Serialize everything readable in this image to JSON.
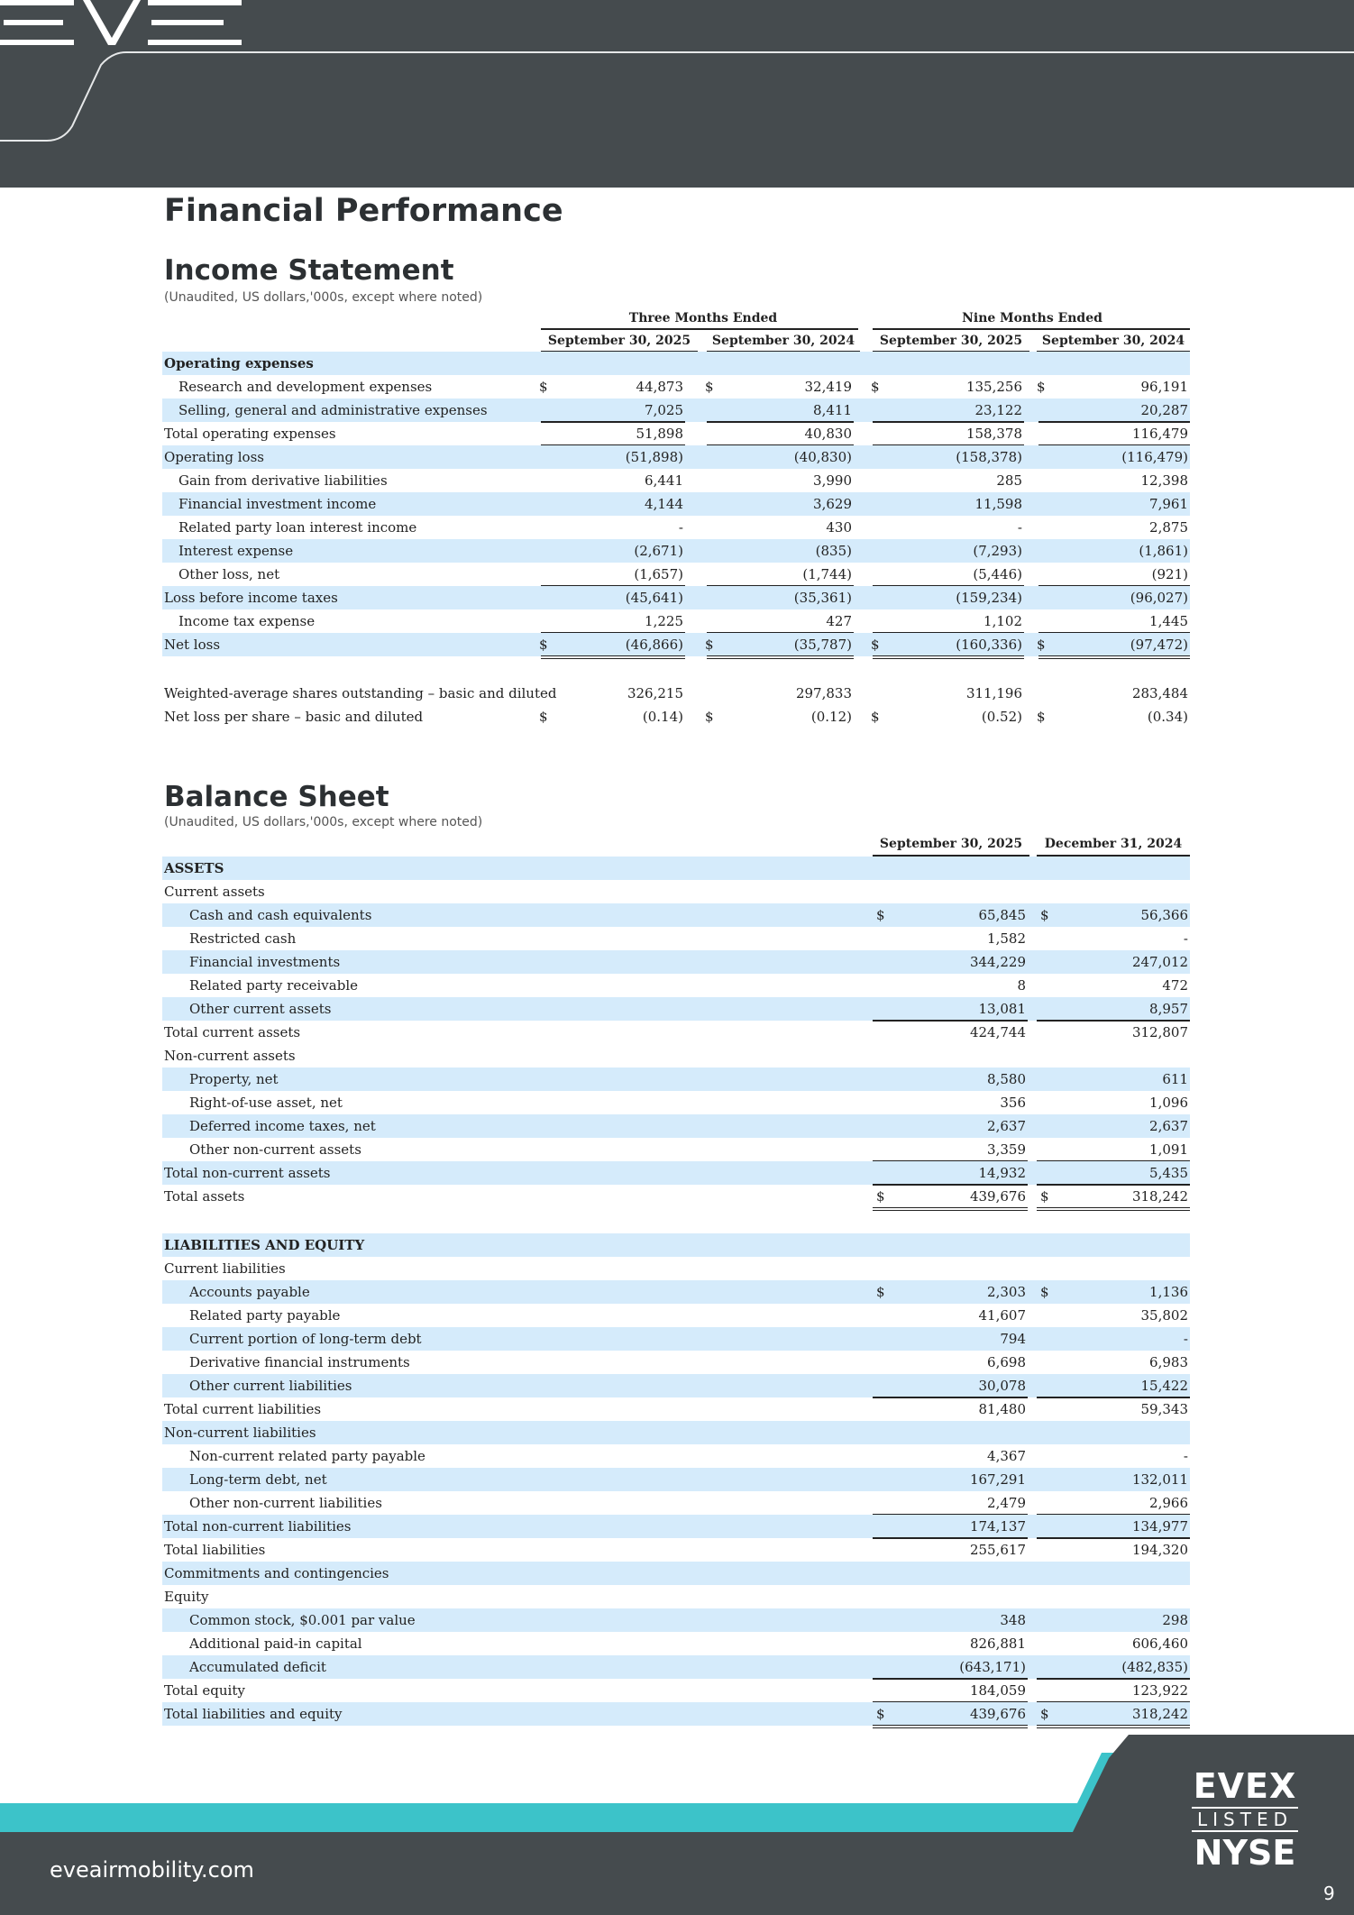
{
  "header": {
    "logo_name": "EVE"
  },
  "page_title": "Financial Performance",
  "income": {
    "title": "Income Statement",
    "note": "(Unaudited, US dollars,'000s, except where noted)",
    "group_three": "Three Months Ended",
    "group_nine": "Nine Months Ended",
    "columns": [
      "September 30, 2025",
      "September 30, 2024",
      "September 30, 2025",
      "September 30, 2024"
    ],
    "rows": [
      {
        "label": "Operating expenses",
        "bold": true,
        "indent": 0,
        "shade": true,
        "values": [
          "",
          "",
          "",
          ""
        ]
      },
      {
        "label": "Research and development expenses",
        "indent": 1,
        "shade": false,
        "dollar": true,
        "values": [
          "44,873",
          "32,419",
          "135,256",
          "96,191"
        ]
      },
      {
        "label": "Selling, general and administrative expenses",
        "indent": 1,
        "shade": true,
        "values": [
          "7,025",
          "8,411",
          "23,122",
          "20,287"
        ],
        "under": "single"
      },
      {
        "label": "Total operating expenses",
        "indent": 0,
        "shade": false,
        "values": [
          "51,898",
          "40,830",
          "158,378",
          "116,479"
        ],
        "under": "single"
      },
      {
        "label": "Operating loss",
        "indent": 0,
        "shade": true,
        "values": [
          "(51,898)",
          "(40,830)",
          "(158,378)",
          "(116,479)"
        ]
      },
      {
        "label": "Gain from derivative liabilities",
        "indent": 1,
        "shade": false,
        "values": [
          "6,441",
          "3,990",
          "285",
          "12,398"
        ]
      },
      {
        "label": "Financial investment income",
        "indent": 1,
        "shade": true,
        "values": [
          "4,144",
          "3,629",
          "11,598",
          "7,961"
        ]
      },
      {
        "label": "Related party loan interest income",
        "indent": 1,
        "shade": false,
        "values": [
          "-",
          "430",
          "-",
          "2,875"
        ]
      },
      {
        "label": "Interest expense",
        "indent": 1,
        "shade": true,
        "values": [
          "(2,671)",
          "(835)",
          "(7,293)",
          "(1,861)"
        ]
      },
      {
        "label": "Other loss, net",
        "indent": 1,
        "shade": false,
        "values": [
          "(1,657)",
          "(1,744)",
          "(5,446)",
          "(921)"
        ],
        "under": "single"
      },
      {
        "label": "Loss before income taxes",
        "indent": 0,
        "shade": true,
        "values": [
          "(45,641)",
          "(35,361)",
          "(159,234)",
          "(96,027)"
        ]
      },
      {
        "label": "Income tax expense",
        "indent": 1,
        "shade": false,
        "values": [
          "1,225",
          "427",
          "1,102",
          "1,445"
        ],
        "under": "single"
      },
      {
        "label": "Net loss",
        "indent": 0,
        "shade": true,
        "dollar": true,
        "values": [
          "(46,866)",
          "(35,787)",
          "(160,336)",
          "(97,472)"
        ],
        "under": "double"
      },
      {
        "label": "Weighted-average shares outstanding – basic and diluted",
        "indent": 0,
        "shade": false,
        "gap": true,
        "values": [
          "326,215",
          "297,833",
          "311,196",
          "283,484"
        ]
      },
      {
        "label": "Net loss per share – basic and diluted",
        "indent": 0,
        "shade": false,
        "dollar": true,
        "values": [
          "(0.14)",
          "(0.12)",
          "(0.52)",
          "(0.34)"
        ]
      }
    ]
  },
  "balance": {
    "title": "Balance Sheet",
    "note": "(Unaudited, US dollars,'000s, except where noted)",
    "columns": [
      "September 30, 2025",
      "December 31, 2024"
    ],
    "rows": [
      {
        "label": "ASSETS",
        "bold": true,
        "indent": 0,
        "shade": true,
        "values": [
          "",
          ""
        ]
      },
      {
        "label": "Current assets",
        "indent": 0,
        "shade": false,
        "values": [
          "",
          ""
        ]
      },
      {
        "label": "Cash and cash equivalents",
        "indent": 2,
        "shade": true,
        "dollar": true,
        "values": [
          "65,845",
          "56,366"
        ]
      },
      {
        "label": "Restricted cash",
        "indent": 2,
        "shade": false,
        "values": [
          "1,582",
          "-"
        ]
      },
      {
        "label": "Financial investments",
        "indent": 2,
        "shade": true,
        "values": [
          "344,229",
          "247,012"
        ]
      },
      {
        "label": "Related party receivable",
        "indent": 2,
        "shade": false,
        "values": [
          "8",
          "472"
        ]
      },
      {
        "label": "Other current assets",
        "indent": 2,
        "shade": true,
        "values": [
          "13,081",
          "8,957"
        ],
        "under": "single"
      },
      {
        "label": "Total current assets",
        "indent": 0,
        "shade": false,
        "values": [
          "424,744",
          "312,807"
        ]
      },
      {
        "label": "Non-current assets",
        "indent": 0,
        "shade": false,
        "values": [
          "",
          ""
        ]
      },
      {
        "label": "Property, net",
        "indent": 2,
        "shade": true,
        "values": [
          "8,580",
          "611"
        ]
      },
      {
        "label": "Right-of-use asset, net",
        "indent": 2,
        "shade": false,
        "values": [
          "356",
          "1,096"
        ]
      },
      {
        "label": "Deferred income taxes, net",
        "indent": 2,
        "shade": true,
        "values": [
          "2,637",
          "2,637"
        ]
      },
      {
        "label": "Other non-current assets",
        "indent": 2,
        "shade": false,
        "values": [
          "3,359",
          "1,091"
        ],
        "under": "single"
      },
      {
        "label": "Total non-current assets",
        "indent": 0,
        "shade": true,
        "values": [
          "14,932",
          "5,435"
        ],
        "under": "single"
      },
      {
        "label": "Total assets",
        "indent": 0,
        "shade": false,
        "dollar": true,
        "values": [
          "439,676",
          "318,242"
        ],
        "under": "double"
      },
      {
        "label": "LIABILITIES AND EQUITY",
        "bold": true,
        "indent": 0,
        "shade": true,
        "gap": true,
        "values": [
          "",
          ""
        ]
      },
      {
        "label": "Current liabilities",
        "indent": 0,
        "shade": false,
        "values": [
          "",
          ""
        ]
      },
      {
        "label": "Accounts payable",
        "indent": 2,
        "shade": true,
        "dollar": true,
        "values": [
          "2,303",
          "1,136"
        ]
      },
      {
        "label": "Related party payable",
        "indent": 2,
        "shade": false,
        "values": [
          "41,607",
          "35,802"
        ]
      },
      {
        "label": "Current portion of long-term debt",
        "indent": 2,
        "shade": true,
        "values": [
          "794",
          "-"
        ]
      },
      {
        "label": "Derivative financial instruments",
        "indent": 2,
        "shade": false,
        "values": [
          "6,698",
          "6,983"
        ]
      },
      {
        "label": "Other current liabilities",
        "indent": 2,
        "shade": true,
        "values": [
          "30,078",
          "15,422"
        ],
        "under": "single"
      },
      {
        "label": "Total current liabilities",
        "indent": 0,
        "shade": false,
        "values": [
          "81,480",
          "59,343"
        ]
      },
      {
        "label": "Non-current liabilities",
        "indent": 0,
        "shade": true,
        "values": [
          "",
          ""
        ]
      },
      {
        "label": "Non-current related party payable",
        "indent": 2,
        "shade": false,
        "values": [
          "4,367",
          "-"
        ]
      },
      {
        "label": "Long-term debt, net",
        "indent": 2,
        "shade": true,
        "values": [
          "167,291",
          "132,011"
        ]
      },
      {
        "label": "Other non-current liabilities",
        "indent": 2,
        "shade": false,
        "values": [
          "2,479",
          "2,966"
        ],
        "under": "single"
      },
      {
        "label": "Total non-current liabilities",
        "indent": 0,
        "shade": true,
        "values": [
          "174,137",
          "134,977"
        ],
        "under": "single"
      },
      {
        "label": "Total liabilities",
        "indent": 0,
        "shade": false,
        "values": [
          "255,617",
          "194,320"
        ]
      },
      {
        "label": "Commitments and contingencies",
        "indent": 0,
        "shade": true,
        "values": [
          "",
          ""
        ]
      },
      {
        "label": "Equity",
        "indent": 0,
        "shade": false,
        "values": [
          "",
          ""
        ]
      },
      {
        "label": "Common stock, $0.001 par value",
        "indent": 2,
        "shade": true,
        "values": [
          "348",
          "298"
        ]
      },
      {
        "label": "Additional paid-in capital",
        "indent": 2,
        "shade": false,
        "values": [
          "826,881",
          "606,460"
        ]
      },
      {
        "label": "Accumulated deficit",
        "indent": 2,
        "shade": true,
        "values": [
          "(643,171)",
          "(482,835)"
        ],
        "under": "single"
      },
      {
        "label": "Total equity",
        "indent": 0,
        "shade": false,
        "values": [
          "184,059",
          "123,922"
        ],
        "under": "single"
      },
      {
        "label": "Total liabilities and equity",
        "indent": 0,
        "shade": true,
        "dollar": true,
        "values": [
          "439,676",
          "318,242"
        ],
        "under": "double"
      }
    ]
  },
  "currency_symbol": "$",
  "footer": {
    "website": "eveairmobility.com",
    "badge_top": "EVEX",
    "badge_mid": "LISTED",
    "badge_bottom": "NYSE",
    "page_number": "9"
  },
  "colors": {
    "header_bg": "#454b4e",
    "row_shade": "#d5ebfb",
    "accent_teal": "#3cc3c9"
  }
}
